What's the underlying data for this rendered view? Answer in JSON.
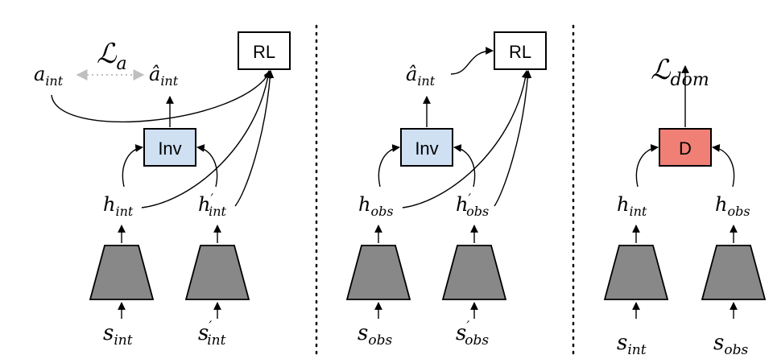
{
  "colors": {
    "inv_fill": "#cfe0f3",
    "d_fill": "#f08076",
    "encoder_fill": "#888888",
    "dotted_arrow": "#bfbfbf"
  },
  "panel1": {
    "loss_main": "ℒ",
    "loss_sub": "a",
    "a_int": {
      "main": "a",
      "sub": "int"
    },
    "a_hat_int": {
      "main": "â",
      "sub": "int"
    },
    "rl_label": "RL",
    "inv_label": "Inv",
    "h_int": {
      "main": "h",
      "sub": "int"
    },
    "h_int_prime": {
      "main": "h",
      "prime": "′",
      "sub": "int"
    },
    "s_int": {
      "main": "s",
      "sub": "int"
    },
    "s_int_prime": {
      "main": "s",
      "prime": "′",
      "sub": "int"
    }
  },
  "panel2": {
    "a_hat_int": {
      "main": "â",
      "sub": "int"
    },
    "rl_label": "RL",
    "inv_label": "Inv",
    "h_obs": {
      "main": "h",
      "sub": "obs"
    },
    "h_obs_prime": {
      "main": "h",
      "prime": "′",
      "sub": "obs"
    },
    "s_obs": {
      "main": "s",
      "sub": "obs"
    },
    "s_obs_prime": {
      "main": "s",
      "prime": "′",
      "sub": "obs"
    }
  },
  "panel3": {
    "loss_main": "ℒ",
    "loss_sub": "dom",
    "d_label": "D",
    "h_int": {
      "main": "h",
      "sub": "int"
    },
    "h_obs": {
      "main": "h",
      "sub": "obs"
    },
    "s_int": {
      "main": "s",
      "sub": "int"
    },
    "s_obs": {
      "main": "s",
      "sub": "obs"
    }
  }
}
